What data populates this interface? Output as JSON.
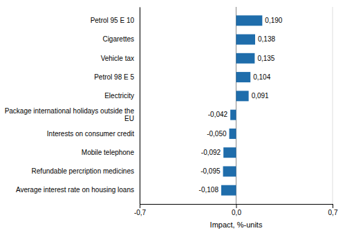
{
  "chart_data": {
    "type": "bar",
    "orientation": "horizontal",
    "categories": [
      "Average interest rate on housing loans",
      "Refundable percription medicines",
      "Mobile telephone",
      "Interests on consumer credit",
      "Package international holidays outside the\nEU",
      "Electricity",
      "Petrol 98 E 5",
      "Vehicle tax",
      "Cigarettes",
      "Petrol 95 E 10"
    ],
    "values": [
      -0.108,
      -0.095,
      -0.092,
      -0.05,
      -0.042,
      0.091,
      0.104,
      0.135,
      0.138,
      0.19
    ],
    "value_labels": [
      "-0,108",
      "-0,095",
      "-0,092",
      "-0,050",
      "-0,042",
      "0,091",
      "0,104",
      "0,135",
      "0,138",
      "0,190"
    ],
    "data_labels": true,
    "color": "#1F6DAB",
    "xlabel": "Impact, %-units",
    "xlim": [
      -0.7,
      0.7
    ],
    "xticks": [
      {
        "value": -0.7,
        "label": "-0,7"
      },
      {
        "value": 0.0,
        "label": "0,0"
      },
      {
        "value": 0.7,
        "label": "0,7"
      }
    ],
    "grid": true
  }
}
